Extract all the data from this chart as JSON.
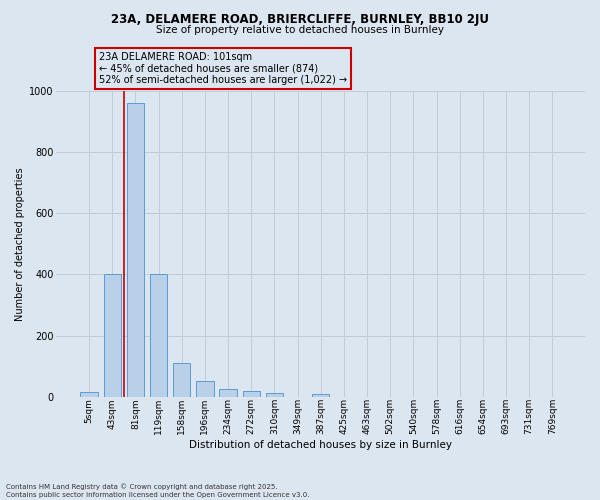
{
  "title_line1": "23A, DELAMERE ROAD, BRIERCLIFFE, BURNLEY, BB10 2JU",
  "title_line2": "Size of property relative to detached houses in Burnley",
  "xlabel": "Distribution of detached houses by size in Burnley",
  "ylabel": "Number of detached properties",
  "categories": [
    "5sqm",
    "43sqm",
    "81sqm",
    "119sqm",
    "158sqm",
    "196sqm",
    "234sqm",
    "272sqm",
    "310sqm",
    "349sqm",
    "387sqm",
    "425sqm",
    "463sqm",
    "502sqm",
    "540sqm",
    "578sqm",
    "616sqm",
    "654sqm",
    "693sqm",
    "731sqm",
    "769sqm"
  ],
  "values": [
    15,
    400,
    960,
    400,
    110,
    50,
    25,
    20,
    13,
    0,
    8,
    0,
    0,
    0,
    0,
    0,
    0,
    0,
    0,
    0,
    0
  ],
  "bar_color": "#b8d0e8",
  "bar_edge_color": "#5b9bd5",
  "grid_color": "#c0ccd8",
  "bg_color": "#dce6f0",
  "vline_x": 1.5,
  "vline_color": "#cc0000",
  "annotation_text": "23A DELAMERE ROAD: 101sqm\n← 45% of detached houses are smaller (874)\n52% of semi-detached houses are larger (1,022) →",
  "annotation_box_edgecolor": "#cc0000",
  "footer_text": "Contains HM Land Registry data © Crown copyright and database right 2025.\nContains public sector information licensed under the Open Government Licence v3.0.",
  "ylim": [
    0,
    1000
  ],
  "yticks": [
    0,
    200,
    400,
    600,
    800,
    1000
  ]
}
